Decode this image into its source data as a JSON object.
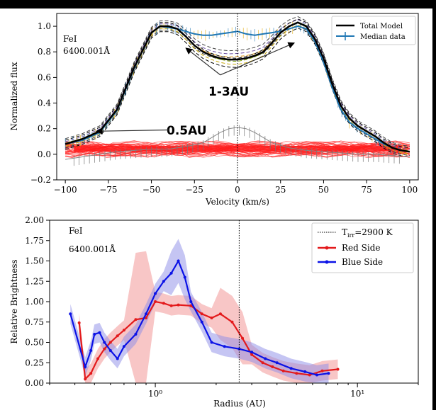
{
  "chart_data": [
    {
      "type": "line",
      "xlabel": "Velocity (km/s)",
      "ylabel": "Normalized flux",
      "xlim": [
        -105,
        105
      ],
      "ylim": [
        -0.2,
        1.1
      ],
      "xticks": [
        -100,
        -75,
        -50,
        -25,
        0,
        25,
        50,
        75,
        100
      ],
      "yticks": [
        -0.2,
        0.0,
        0.2,
        0.4,
        0.6,
        0.8,
        1.0
      ],
      "xtick_labels": [
        "−100",
        "−75",
        "−50",
        "−25",
        "0",
        "25",
        "50",
        "75",
        "100"
      ],
      "ytick_labels": [
        "−0.2",
        "0.0",
        "0.2",
        "0.4",
        "0.6",
        "0.8",
        "1.0"
      ],
      "text_label": "FeI",
      "line_label": "6400.001Å",
      "legend": {
        "placement": "top-right",
        "entries": [
          "Total Model",
          "Median data"
        ]
      },
      "vline_x": 0,
      "annotations": [
        {
          "text": "1-3AU",
          "x": -8,
          "y": 0.48,
          "arrow_targets": [
            [
              -30,
              0.83
            ],
            [
              33,
              0.87
            ]
          ],
          "arrow_origin": [
            -10,
            0.62
          ]
        },
        {
          "text": "0.5AU",
          "x": -40,
          "y": 0.18,
          "arrow_targets": [
            [
              -82,
              0.18
            ]
          ],
          "arrow_origin": [
            -40,
            0.19
          ]
        }
      ],
      "series": [
        {
          "name": "Total Model",
          "color": "#000000",
          "x": [
            -100,
            -90,
            -80,
            -70,
            -60,
            -50,
            -45,
            -40,
            -35,
            -30,
            -25,
            -20,
            -15,
            -10,
            -5,
            0,
            5,
            10,
            15,
            20,
            25,
            30,
            35,
            40,
            45,
            50,
            55,
            60,
            65,
            70,
            75,
            80,
            85,
            90,
            95,
            100
          ],
          "y": [
            0.08,
            0.12,
            0.18,
            0.35,
            0.68,
            0.95,
            1.0,
            1.0,
            0.98,
            0.92,
            0.85,
            0.8,
            0.77,
            0.75,
            0.74,
            0.74,
            0.75,
            0.77,
            0.8,
            0.87,
            0.95,
            1.0,
            1.03,
            1.0,
            0.9,
            0.75,
            0.55,
            0.38,
            0.28,
            0.22,
            0.18,
            0.14,
            0.09,
            0.05,
            0.03,
            0.02
          ]
        },
        {
          "name": "Median data",
          "color": "#1f77b4",
          "x": [
            -100,
            -90,
            -80,
            -70,
            -60,
            -50,
            -45,
            -40,
            -35,
            -30,
            -25,
            -20,
            -15,
            -10,
            -5,
            0,
            5,
            10,
            15,
            20,
            25,
            30,
            35,
            40,
            45,
            50,
            55,
            60,
            65,
            70,
            75,
            80,
            85,
            90,
            95,
            100
          ],
          "y": [
            0.08,
            0.11,
            0.17,
            0.34,
            0.67,
            0.95,
            1.0,
            0.99,
            0.98,
            0.96,
            0.94,
            0.93,
            0.93,
            0.94,
            0.95,
            0.96,
            0.94,
            0.93,
            0.94,
            0.95,
            0.96,
            0.98,
            1.0,
            0.98,
            0.88,
            0.72,
            0.52,
            0.35,
            0.25,
            0.2,
            0.16,
            0.12,
            0.08,
            0.05,
            0.03,
            0.02
          ]
        },
        {
          "name": "0.5AU component",
          "color": "#888888",
          "x": [
            -100,
            -90,
            -80,
            -70,
            -60,
            -50,
            -40,
            -30,
            -20,
            -15,
            -10,
            -5,
            0,
            5,
            10,
            15,
            20,
            30,
            40,
            50,
            60,
            70,
            80,
            90,
            100
          ],
          "y": [
            -0.04,
            -0.02,
            0.0,
            0.02,
            0.03,
            0.04,
            0.04,
            0.06,
            0.09,
            0.13,
            0.17,
            0.2,
            0.21,
            0.2,
            0.17,
            0.13,
            0.09,
            0.05,
            0.03,
            0.02,
            0.01,
            0.0,
            0.0,
            -0.01,
            -0.02
          ]
        }
      ]
    },
    {
      "type": "line",
      "xlabel": "Radius (AU)",
      "ylabel": "Relative Brightness",
      "xscale": "log",
      "xlim": [
        0.3,
        20
      ],
      "ylim": [
        0,
        2.0
      ],
      "yticks": [
        0.0,
        0.25,
        0.5,
        0.75,
        1.0,
        1.25,
        1.5,
        1.75,
        2.0
      ],
      "ytick_labels": [
        "0.00",
        "0.25",
        "0.50",
        "0.75",
        "1.00",
        "1.25",
        "1.50",
        "1.75",
        "2.00"
      ],
      "xticks_major": [
        1,
        10
      ],
      "xtick_labels": [
        "10⁰",
        "10¹"
      ],
      "text_label": "FeI",
      "line_label": "6400.001Å",
      "vline_x": 2.6,
      "legend": {
        "placement": "top-right",
        "entries": [
          "T_irr=2900 K",
          "Red Side",
          "Blue Side"
        ],
        "tirr_main": "T",
        "tirr_sub": "irr",
        "tirr_rest": "=2900 K"
      },
      "series": [
        {
          "name": "Red Side",
          "color": "#e31a1c",
          "x": [
            0.42,
            0.45,
            0.48,
            0.52,
            0.56,
            0.6,
            0.65,
            0.7,
            0.8,
            0.9,
            1.0,
            1.1,
            1.2,
            1.3,
            1.5,
            1.7,
            1.9,
            2.1,
            2.4,
            2.7,
            3.0,
            3.4,
            3.8,
            4.3,
            5.0,
            5.8,
            6.7,
            8.0
          ],
          "y": [
            0.74,
            0.05,
            0.12,
            0.3,
            0.42,
            0.5,
            0.58,
            0.65,
            0.78,
            0.8,
            1.0,
            0.98,
            0.95,
            0.96,
            0.95,
            0.85,
            0.8,
            0.85,
            0.75,
            0.55,
            0.35,
            0.25,
            0.2,
            0.15,
            0.12,
            0.1,
            0.15,
            0.17
          ]
        },
        {
          "name": "Blue Side",
          "color": "#0b12e6",
          "x": [
            0.38,
            0.45,
            0.48,
            0.5,
            0.53,
            0.56,
            0.6,
            0.65,
            0.7,
            0.8,
            0.9,
            1.0,
            1.1,
            1.2,
            1.3,
            1.4,
            1.5,
            1.7,
            1.9,
            2.2,
            2.6,
            3.0,
            3.5,
            4.0,
            4.7,
            5.5,
            6.3,
            7.2
          ],
          "y": [
            0.85,
            0.2,
            0.4,
            0.6,
            0.62,
            0.5,
            0.4,
            0.3,
            0.45,
            0.6,
            0.85,
            1.1,
            1.25,
            1.35,
            1.5,
            1.3,
            1.0,
            0.75,
            0.5,
            0.45,
            0.42,
            0.38,
            0.3,
            0.25,
            0.18,
            0.14,
            0.1,
            0.12
          ]
        }
      ]
    }
  ]
}
